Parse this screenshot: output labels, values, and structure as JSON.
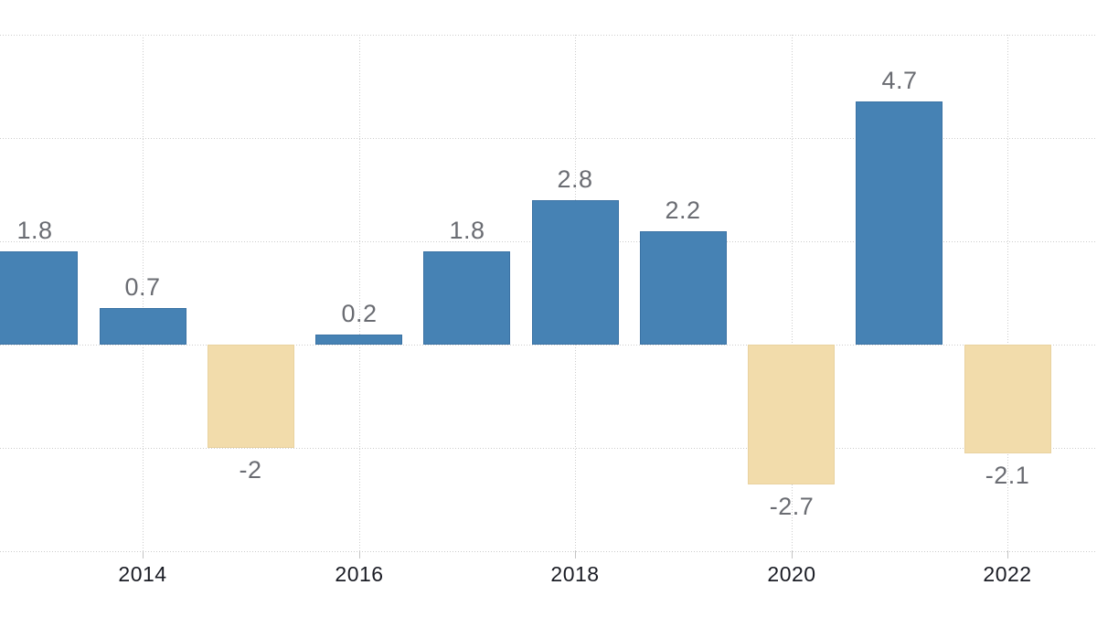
{
  "chart_data": {
    "type": "bar",
    "x": [
      2013,
      2014,
      2015,
      2016,
      2017,
      2018,
      2019,
      2020,
      2021,
      2022
    ],
    "values": [
      1.8,
      0.7,
      -2,
      0.2,
      1.8,
      2.8,
      2.2,
      -2.7,
      4.7,
      -2.1
    ],
    "bar_labels": [
      "1.8",
      "0.7",
      "-2",
      "0.2",
      "1.8",
      "2.8",
      "2.2",
      "-2.7",
      "4.7",
      "-2.1"
    ],
    "x_tick_years": [
      2014,
      2016,
      2018,
      2020,
      2022
    ],
    "x_tick_labels": [
      "2014",
      "2016",
      "2018",
      "2020",
      "2022"
    ],
    "ylim": [
      -4,
      6
    ],
    "gridline_values": [
      6,
      4,
      2,
      0,
      -2,
      -4
    ],
    "grid": "dotted",
    "legend": "none",
    "title": "",
    "xlabel": "",
    "ylabel": "",
    "colors": {
      "positive_bar": "#4682b4",
      "positive_bar_border": "#3a72a4",
      "negative_bar": "#f2dcab",
      "negative_bar_border": "#e9d29f",
      "grid_line": "#cccccc",
      "value_label": "#6a6c72",
      "axis_label": "#1a1c24",
      "background": "#ffffff"
    }
  }
}
